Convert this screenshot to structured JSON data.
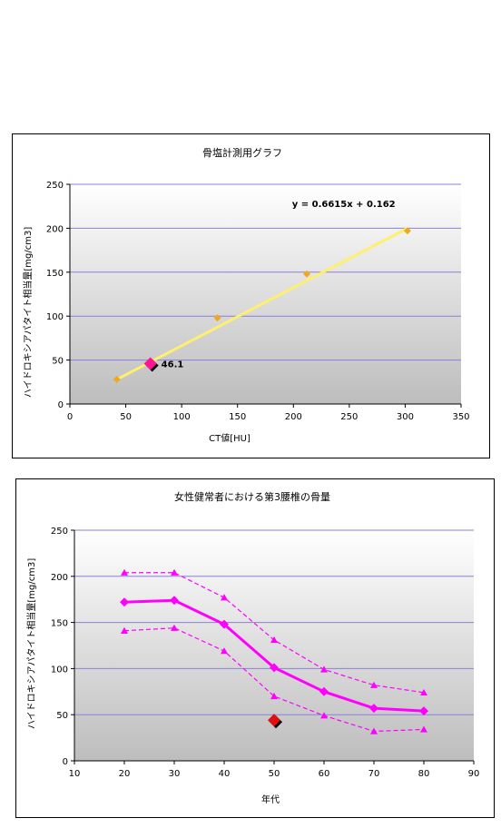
{
  "chart_data": [
    {
      "type": "scatter",
      "title": "骨塩計測用グラフ",
      "xlabel": "CT値[HU]",
      "ylabel": "ハイドロキシアパタイト相当量[mg/cm3]",
      "xlim": [
        0,
        350
      ],
      "ylim": [
        0,
        250
      ],
      "xticks": [
        "0",
        "50",
        "100",
        "150",
        "200",
        "250",
        "300",
        "350"
      ],
      "yticks": [
        "0",
        "50",
        "100",
        "150",
        "200",
        "250"
      ],
      "grid": "horizontal",
      "series": [
        {
          "points": [
            [
              42,
              28
            ],
            [
              132,
              98
            ],
            [
              212,
              148
            ],
            [
              302,
              197
            ]
          ],
          "color": "#f2a81d"
        }
      ],
      "trendline": {
        "equation": "y = 0.6615x + 0.162",
        "slope": 0.6615,
        "intercept": 0.162,
        "x_range": [
          42,
          302
        ],
        "color": "#ffef6e",
        "label_color": "#cc0000"
      },
      "measured_point": {
        "x": 72,
        "y": 46,
        "label": "46.1",
        "label_color": "#e020c0"
      }
    },
    {
      "type": "line",
      "title": "女性健常者における第3腰椎の骨量",
      "xlabel": "年代",
      "ylabel": "ハイドロキシアパタイト相当量[mg/cm3]",
      "xlim": [
        10,
        90
      ],
      "ylim": [
        0,
        250
      ],
      "xticks": [
        "10",
        "20",
        "30",
        "40",
        "50",
        "60",
        "70",
        "80",
        "90"
      ],
      "yticks": [
        "0",
        "50",
        "100",
        "150",
        "200",
        "250"
      ],
      "grid": "horizontal",
      "x": [
        20,
        30,
        40,
        50,
        60,
        70,
        80
      ],
      "series": [
        {
          "values": [
            172,
            174,
            148,
            101,
            75,
            57,
            54
          ],
          "style": "solid",
          "marker": "diamond",
          "color": "#ff00ff"
        },
        {
          "values": [
            204,
            204,
            177,
            131,
            99,
            82,
            74
          ],
          "style": "dashed",
          "marker": "triangle",
          "color": "#ff00ff"
        },
        {
          "values": [
            141,
            144,
            119,
            70,
            49,
            32,
            34
          ],
          "style": "dashed",
          "marker": "triangle",
          "color": "#ff00ff"
        }
      ],
      "measured_point": {
        "x": 50,
        "y": 44
      }
    }
  ]
}
